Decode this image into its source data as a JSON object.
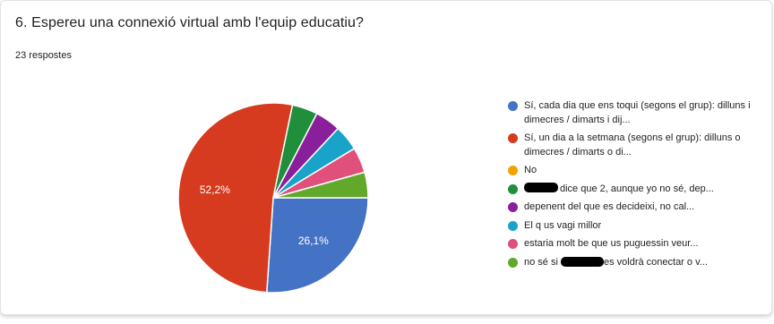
{
  "question": {
    "title": "6. Espereu una connexió virtual amb l'equip educatiu?",
    "response_count": "23 respostes"
  },
  "chart_data": {
    "type": "pie",
    "slices": [
      {
        "label": "Sí, cada dia que ens toqui (segons el grup): dilluns i dimecres / dimarts i dij...",
        "value": 26.1,
        "color": "#4472c4",
        "display_label": "26,1%"
      },
      {
        "label": "Sí, un dia a la setmana (segons el grup): dilluns o dimecres / dimarts o di...",
        "value": 52.2,
        "color": "#d63b1f",
        "display_label": "52,2%"
      },
      {
        "label": "No",
        "value": 0,
        "color": "#f3a200",
        "display_label": ""
      },
      {
        "label": "dice que 2, aunque yo no sé, dep...",
        "value": 4.35,
        "color": "#1f8f3c",
        "display_label": ""
      },
      {
        "label": "depenent del que es decideixi, no cal...",
        "value": 4.35,
        "color": "#8a1f9b",
        "display_label": ""
      },
      {
        "label": "El q us vagi millor",
        "value": 4.35,
        "color": "#1aa3c9",
        "display_label": ""
      },
      {
        "label": "estaria molt be que us puguessin veur...",
        "value": 4.35,
        "color": "#e0507a",
        "display_label": ""
      },
      {
        "label": "no sé si  es voldrà conectar o v...",
        "value": 4.35,
        "color": "#62a82a",
        "display_label": ""
      }
    ],
    "legend_position": "right"
  }
}
